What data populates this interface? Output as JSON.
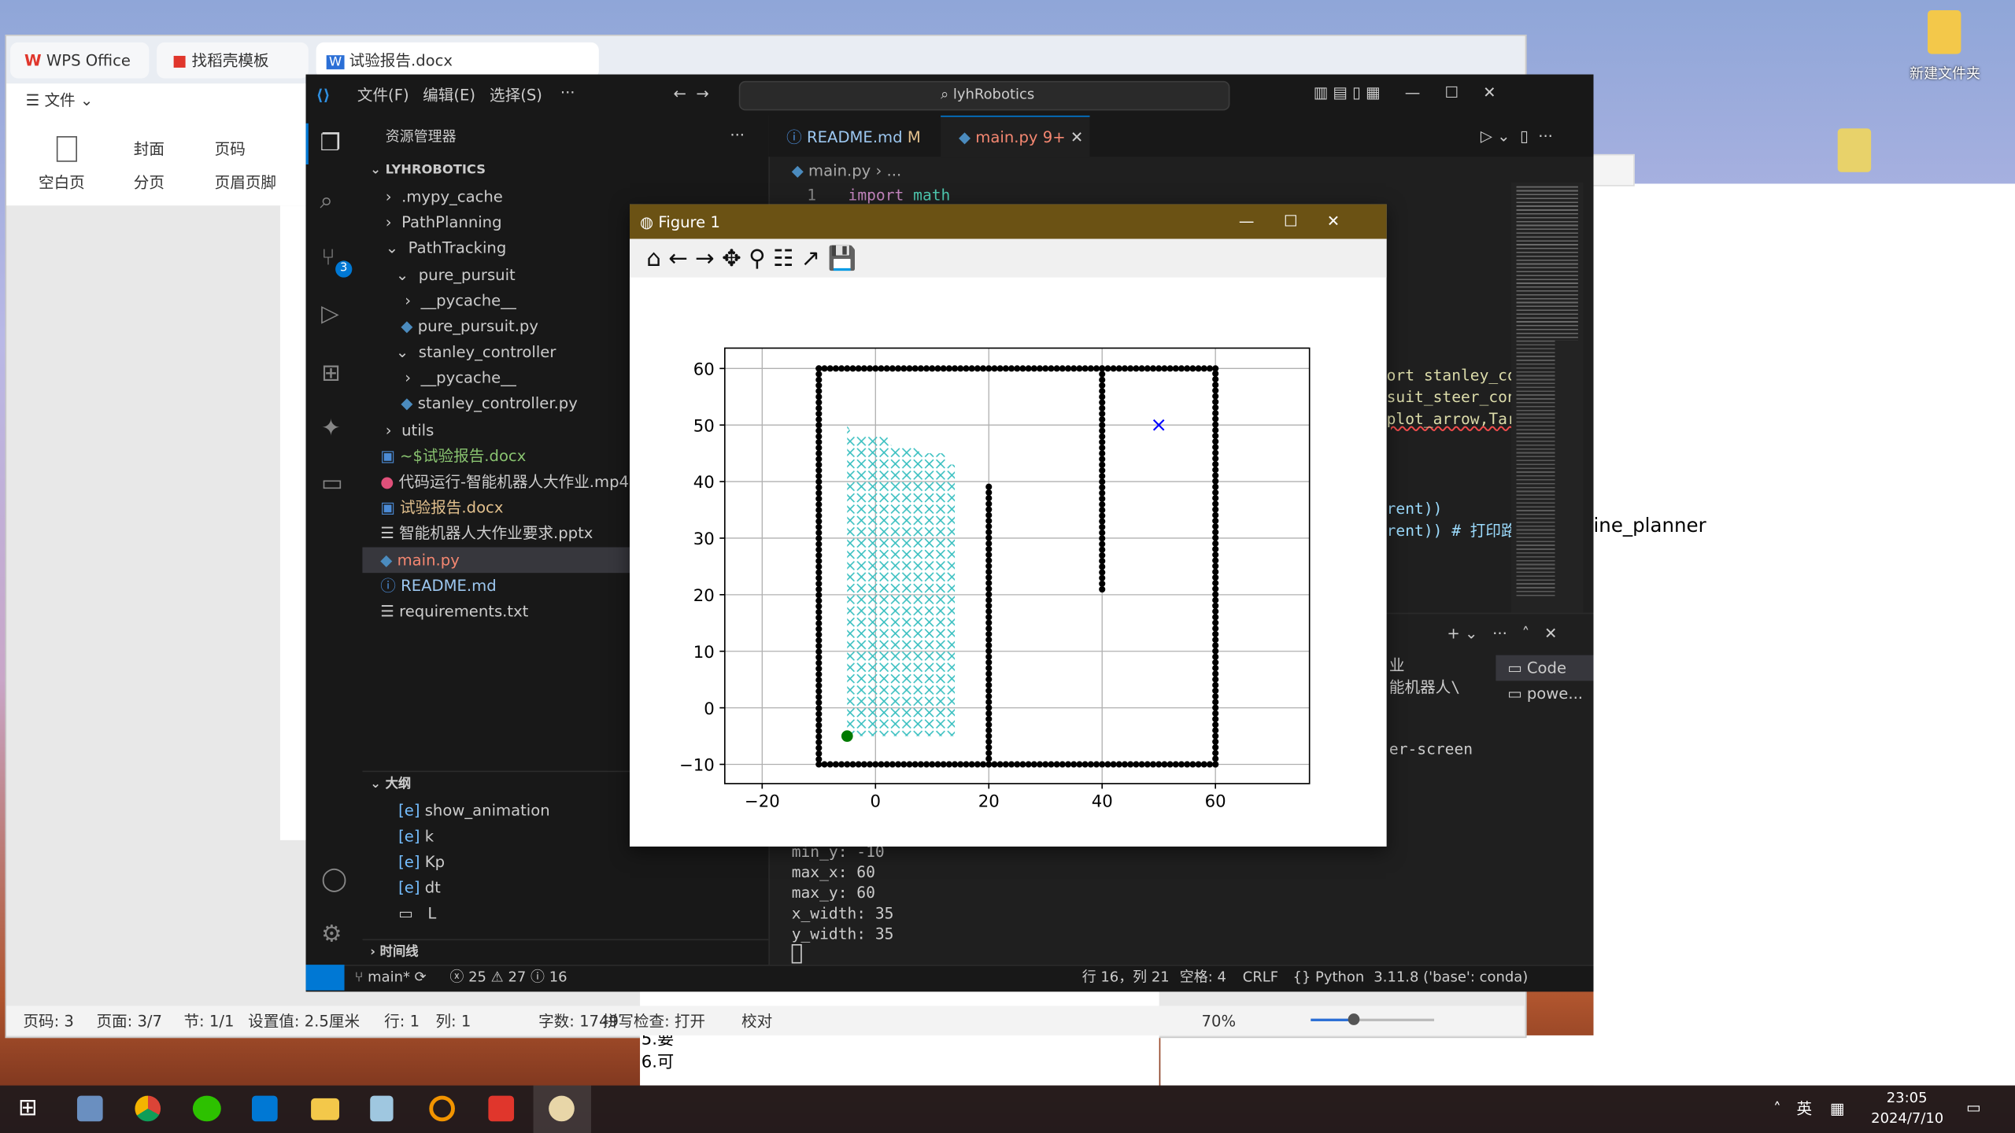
{
  "wps": {
    "tabs": [
      "WPS Office",
      "找稻壳模板",
      "试验报告.docx"
    ],
    "menu": "文件",
    "ribbon": [
      "空白页",
      "封面",
      "页码",
      "分页",
      "页眉页脚"
    ],
    "status": [
      "页码: 3",
      "页面: 3/7",
      "节: 1/1",
      "设置值: 2.5厘米",
      "行: 1",
      "列: 1",
      "字数: 1749",
      "拼写检查: 打开",
      "校对"
    ],
    "zoom": "70%",
    "doc_text": [
      "5.要",
      "6.可"
    ]
  },
  "vscode": {
    "menu": [
      "文件(F)",
      "编辑(E)",
      "选择(S)"
    ],
    "search": "lyhRobotics",
    "explorer": "资源管理器",
    "root": "LYHROBOTICS",
    "tree": [
      ".mypy_cache",
      "PathPlanning",
      "PathTracking",
      "pure_pursuit",
      "__pycache__",
      "pure_pursuit.py",
      "stanley_controller",
      "__pycache__",
      "stanley_controller.py",
      "utils",
      "~$试验报告.docx",
      "代码运行-智能机器人大作业.mp4",
      "试验报告.docx",
      "智能机器人大作业要求.pptx",
      "main.py",
      "README.md",
      "requirements.txt"
    ],
    "outline_title": "大纲",
    "outline": [
      "show_animation",
      "k",
      "Kp",
      "dt",
      "L"
    ],
    "timeline": "时间线",
    "scm_badge": "3",
    "tabs": [
      {
        "name": "README.md",
        "badge": "M"
      },
      {
        "name": "main.py",
        "badge": "9+"
      }
    ],
    "breadcrumb": "main.py",
    "code": {
      "line": 1,
      "keyword": "import",
      "name": "math"
    },
    "code_fragments": [
      "ort stanley_co",
      "suit_steer_con",
      "plot_arrow,Tar",
      "rent))",
      "rent)) # 打印路"
    ],
    "terminal": [
      "业",
      "能机器人\\",
      "er-screen",
      "min_y: -10",
      "max_x: 60",
      "max_y: 60",
      "x_width: 35",
      "y_width: 35"
    ],
    "terminal_tabs": [
      "Code",
      "powe..."
    ],
    "status": {
      "branch": "main*",
      "errors": 25,
      "warnings": 27,
      "infos": 16,
      "position": "行 16，列 21",
      "spaces": "空格: 4",
      "eol": "CRLF",
      "language": "Python",
      "interpreter": "3.11.8 ('base': conda)"
    }
  },
  "figure": {
    "title": "Figure 1"
  },
  "other_window": {
    "text": "ine_planner"
  },
  "desktop": {
    "folder": "新建文件夹"
  },
  "taskbar": {
    "ime": "英",
    "time": "23:05",
    "date": "2024/7/10"
  },
  "chart_data": {
    "type": "scatter",
    "xlim": [
      -26.6,
      76.6
    ],
    "ylim": [
      -13.4,
      63.6
    ],
    "xticks": [
      {
        "value": -20,
        "label": "−20"
      },
      0,
      20,
      40,
      60
    ],
    "yticks": [
      {
        "value": -10,
        "label": "−10"
      },
      0,
      10,
      20,
      30,
      40,
      50,
      60
    ],
    "grid": true,
    "obstacles": {
      "color": "#000000",
      "segments": [
        {
          "x": [
            -10,
            60
          ],
          "y": [
            -10,
            -10
          ]
        },
        {
          "x": [
            60,
            60
          ],
          "y": [
            -10,
            60
          ]
        },
        {
          "x": [
            60,
            -10
          ],
          "y": [
            60,
            60
          ]
        },
        {
          "x": [
            -10,
            -10
          ],
          "y": [
            60,
            -10
          ]
        },
        {
          "x": [
            20,
            20
          ],
          "y": [
            -10,
            40
          ]
        },
        {
          "x": [
            40,
            40
          ],
          "y": [
            60,
            20
          ]
        }
      ]
    },
    "explored": {
      "color": "#38bfc0",
      "x": [
        -5,
        -5,
        -4,
        2,
        3,
        7,
        8,
        12,
        13,
        14,
        14
      ],
      "y": [
        -5,
        50,
        48,
        48,
        46,
        46,
        45,
        45,
        43,
        43,
        -5
      ]
    },
    "start": {
      "x": -5,
      "y": -5,
      "color": "#007a00"
    },
    "goal": {
      "x": 50,
      "y": 50,
      "color": "#0000ff"
    }
  }
}
